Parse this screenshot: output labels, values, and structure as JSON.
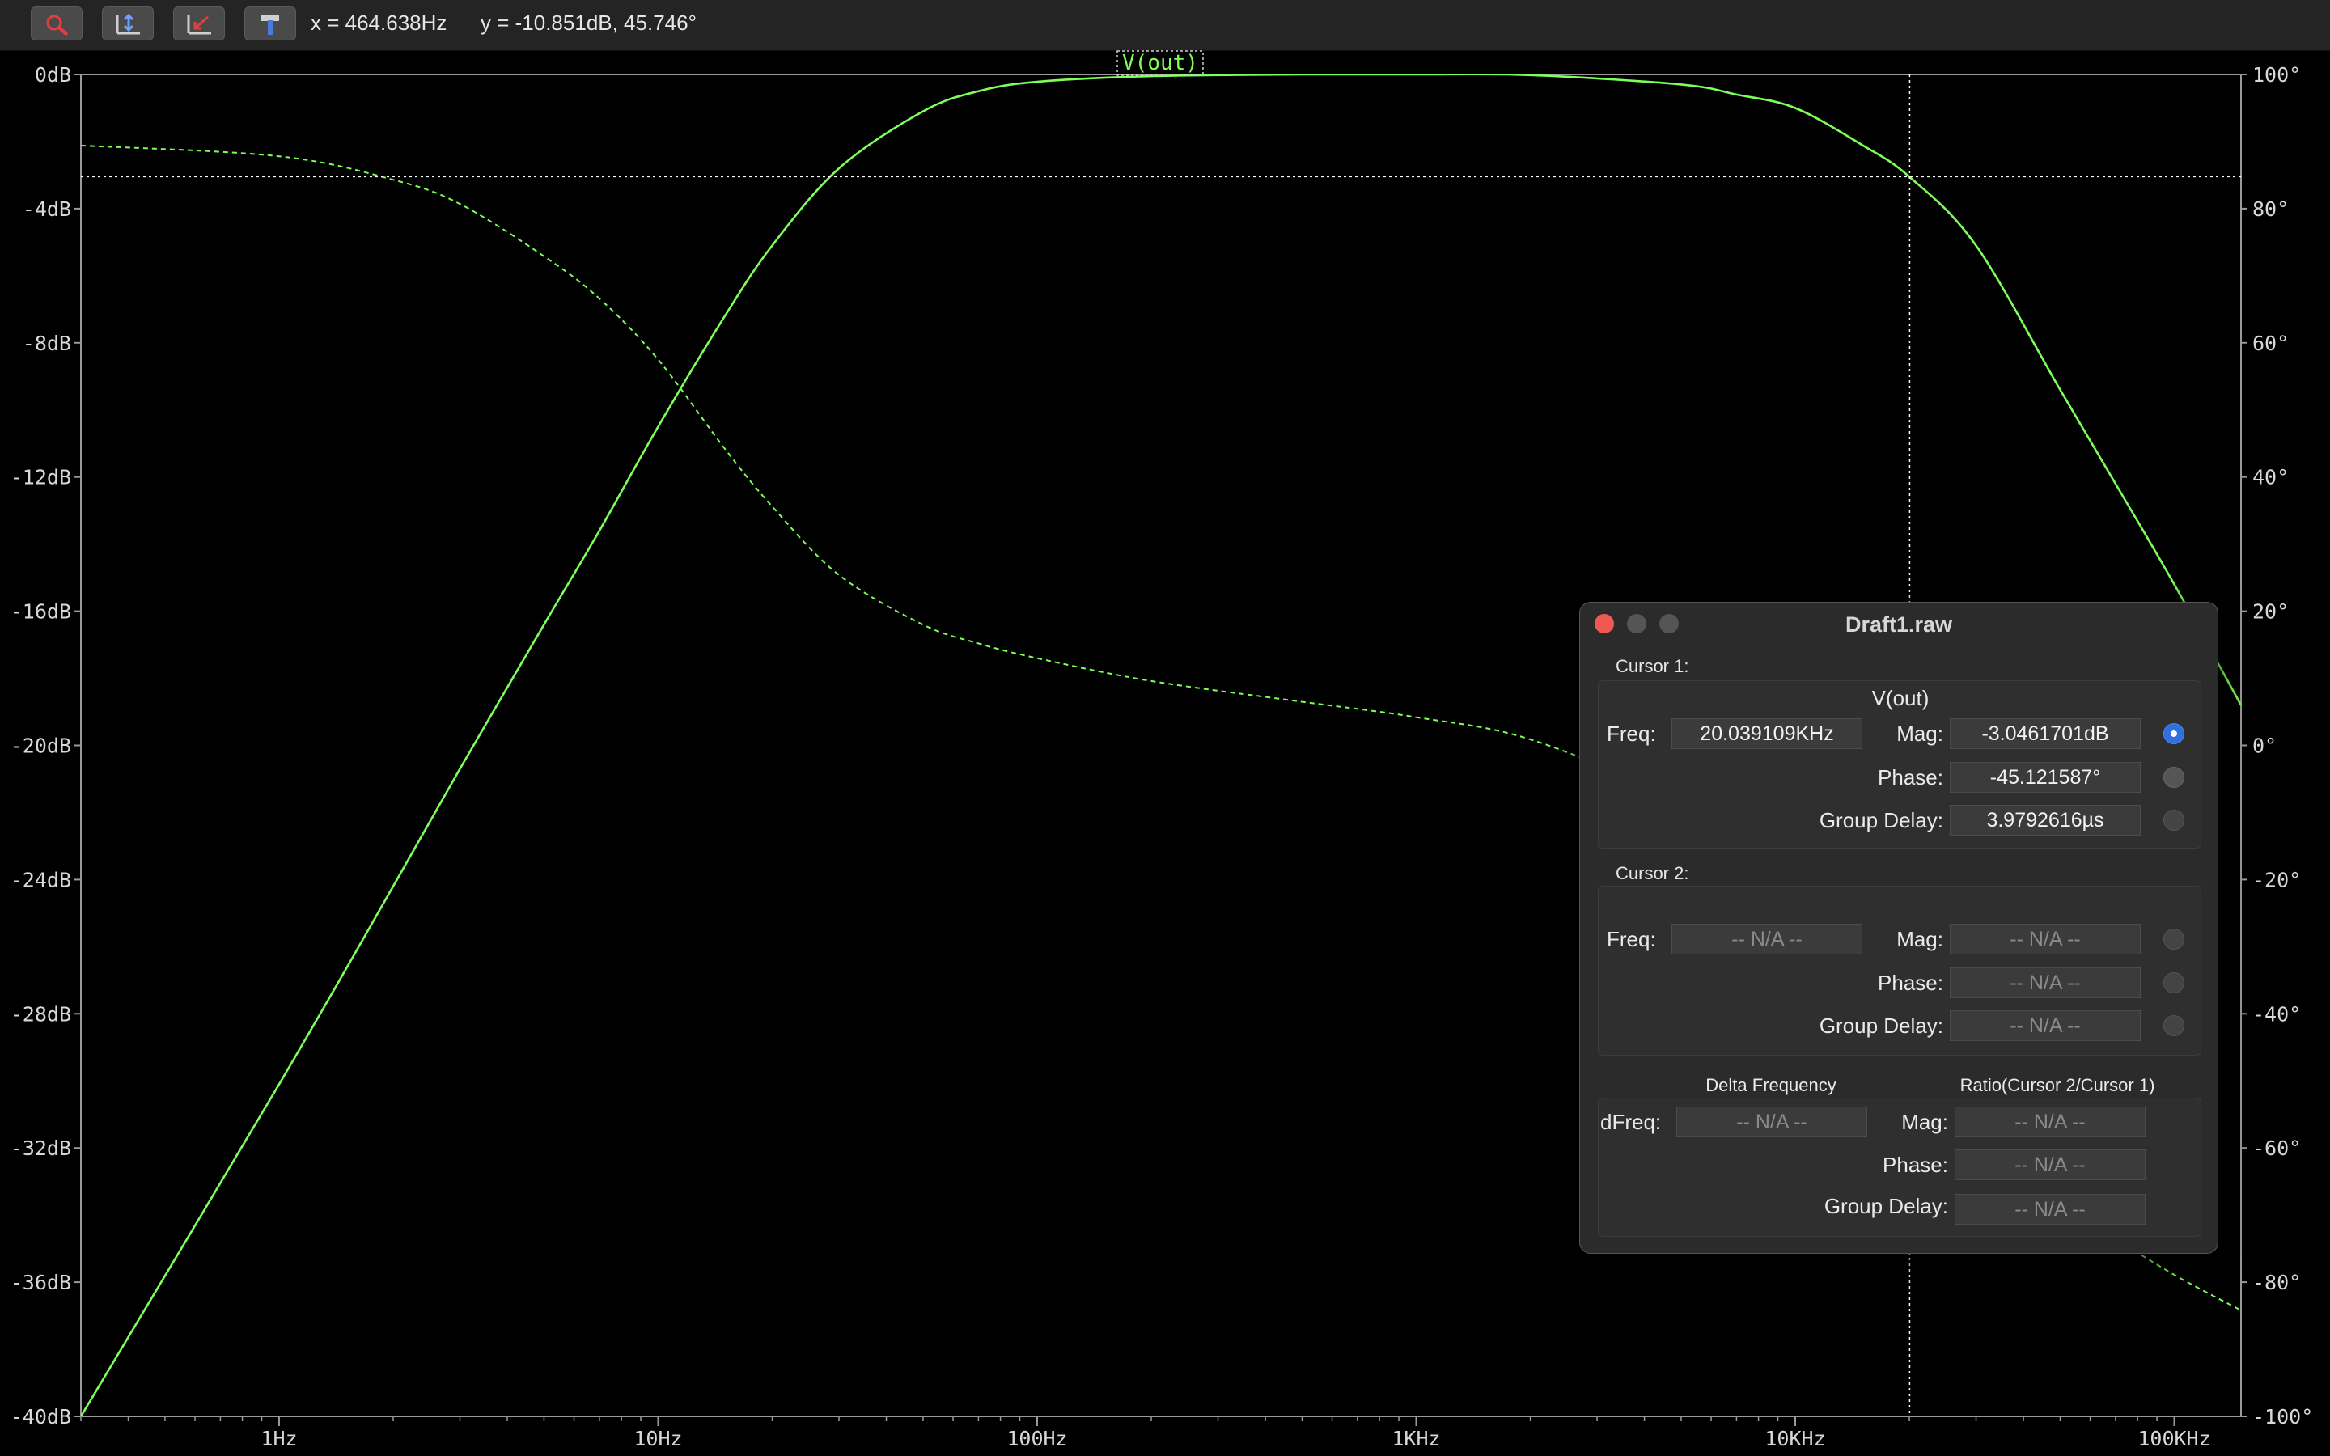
{
  "toolbar": {
    "tools": [
      {
        "icon": "zoom-icon"
      },
      {
        "icon": "autorange-icon"
      },
      {
        "icon": "zoom-back-icon"
      },
      {
        "icon": "hammer-icon"
      }
    ],
    "x_readout": "x = 464.638Hz",
    "y_readout": "y = -10.851dB, 45.746°"
  },
  "colors": {
    "trace": "#7dff5a",
    "grid": "#ffffff",
    "background": "#000000"
  },
  "chart_data": {
    "type": "line",
    "trace_name": "V(out)",
    "x_scale": "log",
    "x_range_hz": [
      0.3,
      150000
    ],
    "y_left_range_db": [
      -40,
      0
    ],
    "y_right_range_deg": [
      -100,
      100
    ],
    "x_ticks": [
      {
        "value": 1,
        "label": "1Hz"
      },
      {
        "value": 10,
        "label": "10Hz"
      },
      {
        "value": 100,
        "label": "100Hz"
      },
      {
        "value": 1000,
        "label": "1KHz"
      },
      {
        "value": 10000,
        "label": "10KHz"
      },
      {
        "value": 100000,
        "label": "100KHz"
      }
    ],
    "y_left_ticks": [
      {
        "value": 0,
        "label": "0dB"
      },
      {
        "value": -4,
        "label": "-4dB"
      },
      {
        "value": -8,
        "label": "-8dB"
      },
      {
        "value": -12,
        "label": "-12dB"
      },
      {
        "value": -16,
        "label": "-16dB"
      },
      {
        "value": -20,
        "label": "-20dB"
      },
      {
        "value": -24,
        "label": "-24dB"
      },
      {
        "value": -28,
        "label": "-28dB"
      },
      {
        "value": -32,
        "label": "-32dB"
      },
      {
        "value": -36,
        "label": "-36dB"
      },
      {
        "value": -40,
        "label": "-40dB"
      }
    ],
    "y_right_ticks": [
      {
        "value": 100,
        "label": "100°"
      },
      {
        "value": 80,
        "label": "80°"
      },
      {
        "value": 60,
        "label": "60°"
      },
      {
        "value": 40,
        "label": "40°"
      },
      {
        "value": 20,
        "label": "20°"
      },
      {
        "value": 0,
        "label": "0°"
      },
      {
        "value": -20,
        "label": "-20°"
      },
      {
        "value": -40,
        "label": "-40°"
      },
      {
        "value": -60,
        "label": "-60°"
      },
      {
        "value": -80,
        "label": "-80°"
      },
      {
        "value": -100,
        "label": "-100°"
      }
    ],
    "series": [
      {
        "quantity": "magnitude",
        "axis": "left",
        "style": "solid",
        "x": [
          0.3,
          1,
          2,
          3,
          5,
          7,
          10,
          15,
          20,
          30,
          50,
          70,
          100,
          200,
          500,
          1000,
          2000,
          5000,
          7000,
          10000,
          15000,
          20000,
          30000,
          50000,
          70000,
          100000,
          150000
        ],
        "y": [
          -40,
          -30.1,
          -24.2,
          -20.7,
          -16.4,
          -13.6,
          -10.5,
          -7.2,
          -5.1,
          -2.8,
          -1.1,
          -0.5,
          -0.22,
          -0.05,
          0,
          0,
          -0.02,
          -0.3,
          -0.6,
          -1.0,
          -2.1,
          -3.05,
          -5.1,
          -9.4,
          -12.2,
          -15.2,
          -18.8
        ]
      },
      {
        "quantity": "phase",
        "axis": "right",
        "style": "dashed",
        "x": [
          0.3,
          1,
          2,
          3,
          5,
          7,
          10,
          15,
          20,
          30,
          50,
          70,
          100,
          200,
          500,
          1000,
          2000,
          5000,
          7000,
          10000,
          15000,
          20000,
          30000,
          50000,
          70000,
          100000,
          150000
        ],
        "y": [
          89.4,
          87.8,
          84.3,
          80.7,
          72.9,
          66.6,
          57.5,
          44.2,
          35.6,
          25.4,
          18.0,
          15.2,
          13.0,
          9.6,
          6.5,
          4.2,
          0.9,
          -8.2,
          -13.4,
          -20.7,
          -33.5,
          -45.1,
          -55.1,
          -67.1,
          -73.4,
          -78.9,
          -84.2
        ]
      }
    ],
    "cursor": {
      "freq_hz": 20039.109,
      "mag_db": -3.0461701
    }
  },
  "dialog": {
    "title": "Draft1.raw",
    "cursor1": {
      "section": "Cursor 1:",
      "trace": "V(out)",
      "freq_label": "Freq:",
      "freq": "20.039109KHz",
      "mag_label": "Mag:",
      "mag": "-3.0461701dB",
      "phase_label": "Phase:",
      "phase": "-45.121587°",
      "gd_label": "Group Delay:",
      "gd": "3.9792616µs"
    },
    "cursor2": {
      "section": "Cursor 2:",
      "freq_label": "Freq:",
      "freq": "-- N/A --",
      "mag_label": "Mag:",
      "mag": "-- N/A --",
      "phase_label": "Phase:",
      "phase": "-- N/A --",
      "gd_label": "Group Delay:",
      "gd": "-- N/A --"
    },
    "delta": {
      "head_freq": "Delta Frequency",
      "head_ratio": "Ratio(Cursor 2/Cursor 1)",
      "dfreq_label": "dFreq:",
      "dfreq": "-- N/A --",
      "mag_label": "Mag:",
      "mag": "-- N/A --",
      "phase_label": "Phase:",
      "phase": "-- N/A --",
      "gd_label": "Group Delay:",
      "gd": "-- N/A --"
    }
  }
}
